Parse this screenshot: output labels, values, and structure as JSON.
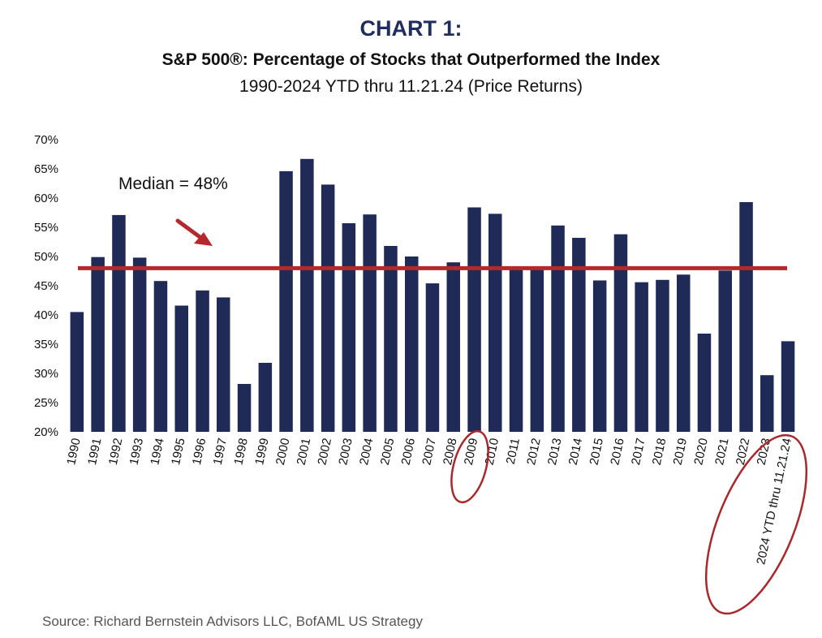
{
  "header": {
    "chart_label": "CHART 1:",
    "title": "S&P 500®: Percentage of Stocks that Outperformed the Index",
    "subtitle": "1990-2024 YTD thru 11.21.24 (Price Returns)"
  },
  "source": "Source: Richard Bernstein Advisors LLC, BofAML US Strategy",
  "colors": {
    "bar": "#1f2a56",
    "median_line": "#b22a2e",
    "annotation": "#a8292d",
    "title": "#1f2e5c"
  },
  "chart_data": {
    "type": "bar",
    "categories": [
      "1990",
      "1991",
      "1992",
      "1993",
      "1994",
      "1995",
      "1996",
      "1997",
      "1998",
      "1999",
      "2000",
      "2001",
      "2002",
      "2003",
      "2004",
      "2005",
      "2006",
      "2007",
      "2008",
      "2009",
      "2010",
      "2011",
      "2012",
      "2013",
      "2014",
      "2015",
      "2016",
      "2017",
      "2018",
      "2019",
      "2020",
      "2021",
      "2022",
      "2023",
      "2024 YTD thru 11.21.24"
    ],
    "values": [
      40.5,
      49.9,
      57.1,
      49.8,
      45.8,
      41.6,
      44.2,
      43.0,
      28.2,
      31.8,
      64.6,
      66.7,
      62.3,
      55.7,
      57.2,
      51.8,
      50.0,
      45.4,
      49.0,
      58.4,
      57.3,
      47.9,
      48.2,
      55.3,
      53.2,
      45.9,
      53.8,
      45.6,
      46.0,
      46.9,
      36.8,
      47.6,
      59.3,
      29.7,
      35.5
    ],
    "ylabel": "",
    "xlabel": "",
    "ylim": [
      20,
      70
    ],
    "yticks": [
      "20%",
      "25%",
      "30%",
      "35%",
      "40%",
      "45%",
      "50%",
      "55%",
      "60%",
      "65%",
      "70%"
    ],
    "median": 48,
    "median_label": "Median = 48%",
    "highlighted": [
      "2009",
      "2024 YTD thru 11.21.24"
    ],
    "grid": false,
    "legend": "none"
  }
}
